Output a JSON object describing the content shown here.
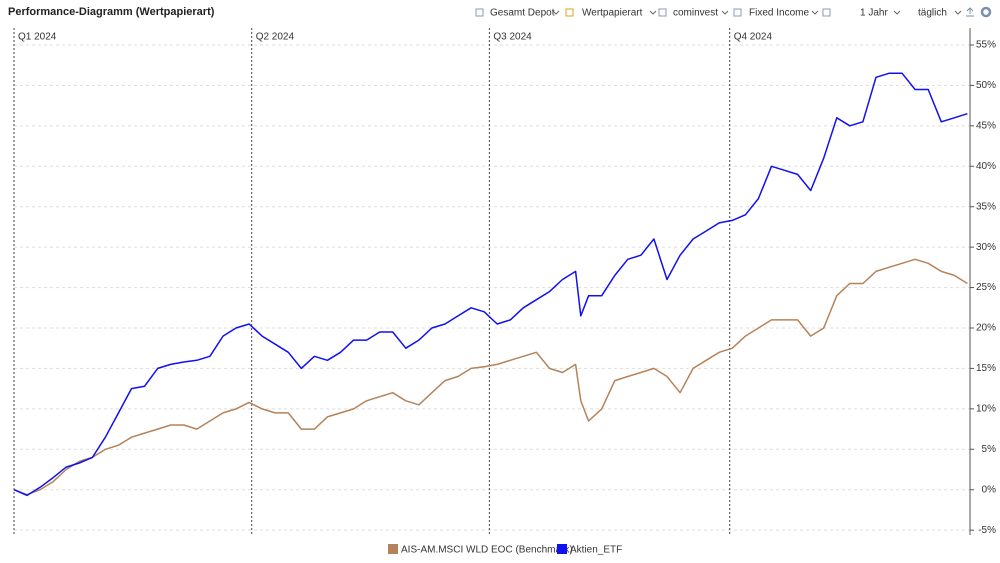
{
  "toolbar": {
    "items": [
      "Gesamt Depot",
      "Wertpapierart",
      "cominvest",
      "Fixed Income",
      "1 Jahr",
      "täglich"
    ]
  },
  "chart_data": {
    "type": "line",
    "title": "Performance-Diagramm (Wertpapierart)",
    "x": [
      0,
      5,
      10,
      15,
      20,
      25,
      30,
      35,
      40,
      45,
      50,
      55,
      60,
      65,
      70,
      75,
      80,
      85,
      90,
      95,
      100,
      105,
      110,
      115,
      120,
      125,
      130,
      135,
      140,
      145,
      150,
      155,
      160,
      165,
      170,
      175,
      180,
      185,
      190,
      195,
      200,
      205,
      210,
      215,
      217,
      220,
      225,
      230,
      235,
      240,
      245,
      250,
      255,
      260,
      265,
      270,
      275,
      280,
      285,
      290,
      295,
      300,
      305,
      310,
      315,
      320,
      325,
      330,
      335,
      340,
      345,
      350,
      355,
      360,
      365
    ],
    "xlim": [
      0,
      366
    ],
    "xticks": [
      {
        "value": 0,
        "label": "Q1 2024"
      },
      {
        "value": 91,
        "label": "Q2 2024"
      },
      {
        "value": 182,
        "label": "Q3 2024"
      },
      {
        "value": 274,
        "label": "Q4 2024"
      }
    ],
    "ylim": [
      -5.6,
      57.1
    ],
    "yticks": [
      {
        "value": -5,
        "label": "-5%"
      },
      {
        "value": 0,
        "label": "0%"
      },
      {
        "value": 5,
        "label": "5%"
      },
      {
        "value": 10,
        "label": "10%"
      },
      {
        "value": 15,
        "label": "15%"
      },
      {
        "value": 20,
        "label": "20%"
      },
      {
        "value": 25,
        "label": "25%"
      },
      {
        "value": 30,
        "label": "30%"
      },
      {
        "value": 35,
        "label": "35%"
      },
      {
        "value": 40,
        "label": "40%"
      },
      {
        "value": 45,
        "label": "45%"
      },
      {
        "value": 50,
        "label": "50%"
      },
      {
        "value": 55,
        "label": "55%"
      }
    ],
    "grid": true,
    "legend": "bottom",
    "series": [
      {
        "name": "AIS-AM.MSCI WLD EOC (Benchmark)",
        "color": "#b5835a",
        "values": [
          0,
          -0.6,
          0,
          1,
          2.5,
          3.5,
          4,
          5,
          5.5,
          6.5,
          7,
          7.5,
          8,
          8,
          7.5,
          8.5,
          9.5,
          10,
          10.8,
          10,
          9.5,
          9.5,
          7.5,
          7.5,
          9,
          9.5,
          10,
          11,
          11.5,
          12,
          11,
          10.5,
          12,
          13.5,
          14,
          15,
          15.2,
          15.5,
          16,
          16.5,
          17,
          15,
          14.5,
          15.5,
          11,
          8.5,
          10,
          13.5,
          14,
          14.5,
          15,
          14,
          12,
          15,
          16,
          17,
          17.5,
          19,
          20,
          21,
          21,
          21,
          19,
          20,
          24,
          25.5,
          25.5,
          27,
          27.5,
          28,
          28.5,
          28,
          27,
          26.5,
          25.5
        ]
      },
      {
        "name": "Aktien_ETF",
        "color": "#1010f0",
        "values": [
          0,
          -0.7,
          0.3,
          1.5,
          2.8,
          3.3,
          4,
          6.5,
          9.5,
          12.5,
          12.8,
          15,
          15.5,
          15.8,
          16,
          16.5,
          19,
          20,
          20.5,
          19,
          18,
          17,
          15,
          16.5,
          16,
          17,
          18.5,
          18.5,
          19.5,
          19.5,
          17.5,
          18.5,
          20,
          20.5,
          21.5,
          22.5,
          22,
          20.5,
          21,
          22.5,
          23.5,
          24.5,
          26,
          27,
          21.5,
          24,
          24,
          26.5,
          28.5,
          29,
          31,
          26,
          29,
          31,
          32,
          33,
          33.3,
          34,
          36,
          40,
          39.5,
          39,
          37,
          41,
          46,
          45,
          45.5,
          51,
          51.5,
          51.5,
          49.5,
          49.5,
          45.5,
          46,
          46.5
        ]
      }
    ]
  }
}
